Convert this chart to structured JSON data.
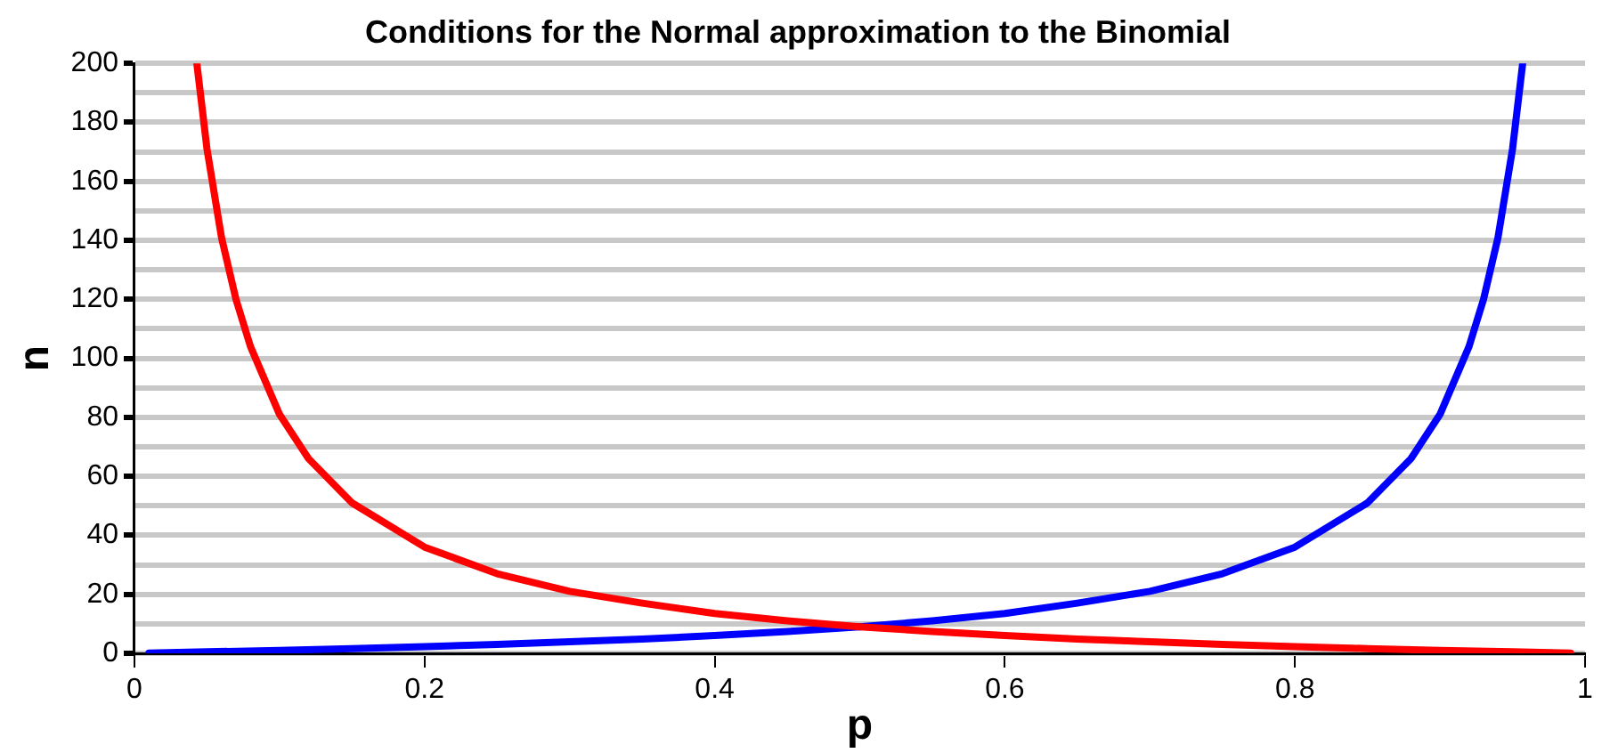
{
  "chart_data": {
    "type": "line",
    "title": "Conditions for the Normal approximation to the Binomial",
    "xlabel": "p",
    "ylabel": "n",
    "series": [
      {
        "color": "#ff0000",
        "x": [
          0.043,
          0.05,
          0.06,
          0.07,
          0.08,
          0.1,
          0.12,
          0.15,
          0.2,
          0.25,
          0.3,
          0.35,
          0.4,
          0.45,
          0.5,
          0.55,
          0.6,
          0.65,
          0.7,
          0.75,
          0.8,
          0.85,
          0.9,
          0.95,
          0.99
        ],
        "values": [
          200,
          171,
          141,
          120,
          104,
          81,
          66,
          51,
          36,
          27,
          21,
          17,
          13.5,
          11,
          9,
          7.4,
          6,
          4.8,
          3.9,
          3,
          2.3,
          1.6,
          1,
          0.5,
          0.1
        ]
      },
      {
        "color": "#0000ff",
        "x": [
          0.01,
          0.05,
          0.1,
          0.15,
          0.2,
          0.25,
          0.3,
          0.35,
          0.4,
          0.45,
          0.5,
          0.55,
          0.6,
          0.65,
          0.7,
          0.75,
          0.8,
          0.85,
          0.88,
          0.9,
          0.92,
          0.93,
          0.94,
          0.95,
          0.957
        ],
        "values": [
          0.1,
          0.5,
          1,
          1.6,
          2.3,
          3,
          3.9,
          4.8,
          6,
          7.4,
          9,
          11,
          13.5,
          17,
          21,
          27,
          36,
          51,
          66,
          81,
          104,
          120,
          141,
          171,
          200
        ]
      }
    ],
    "xlim": [
      0,
      1
    ],
    "xticks": [
      0,
      0.2,
      0.4,
      0.6,
      0.8,
      1
    ],
    "ylim": [
      0,
      200
    ],
    "yticks": [
      0,
      {
        "value": 10,
        "label": null
      },
      20,
      {
        "value": 30,
        "label": null
      },
      40,
      {
        "value": 50,
        "label": null
      },
      60,
      {
        "value": 70,
        "label": null
      },
      80,
      {
        "value": 90,
        "label": null
      },
      100,
      {
        "value": 110,
        "label": null
      },
      120,
      {
        "value": 130,
        "label": null
      },
      140,
      {
        "value": 150,
        "label": null
      },
      160,
      {
        "value": 170,
        "label": null
      },
      180,
      {
        "value": 190,
        "label": null
      },
      200
    ],
    "grid": "y",
    "legend": false,
    "marker": "none",
    "line_style": "solid"
  }
}
